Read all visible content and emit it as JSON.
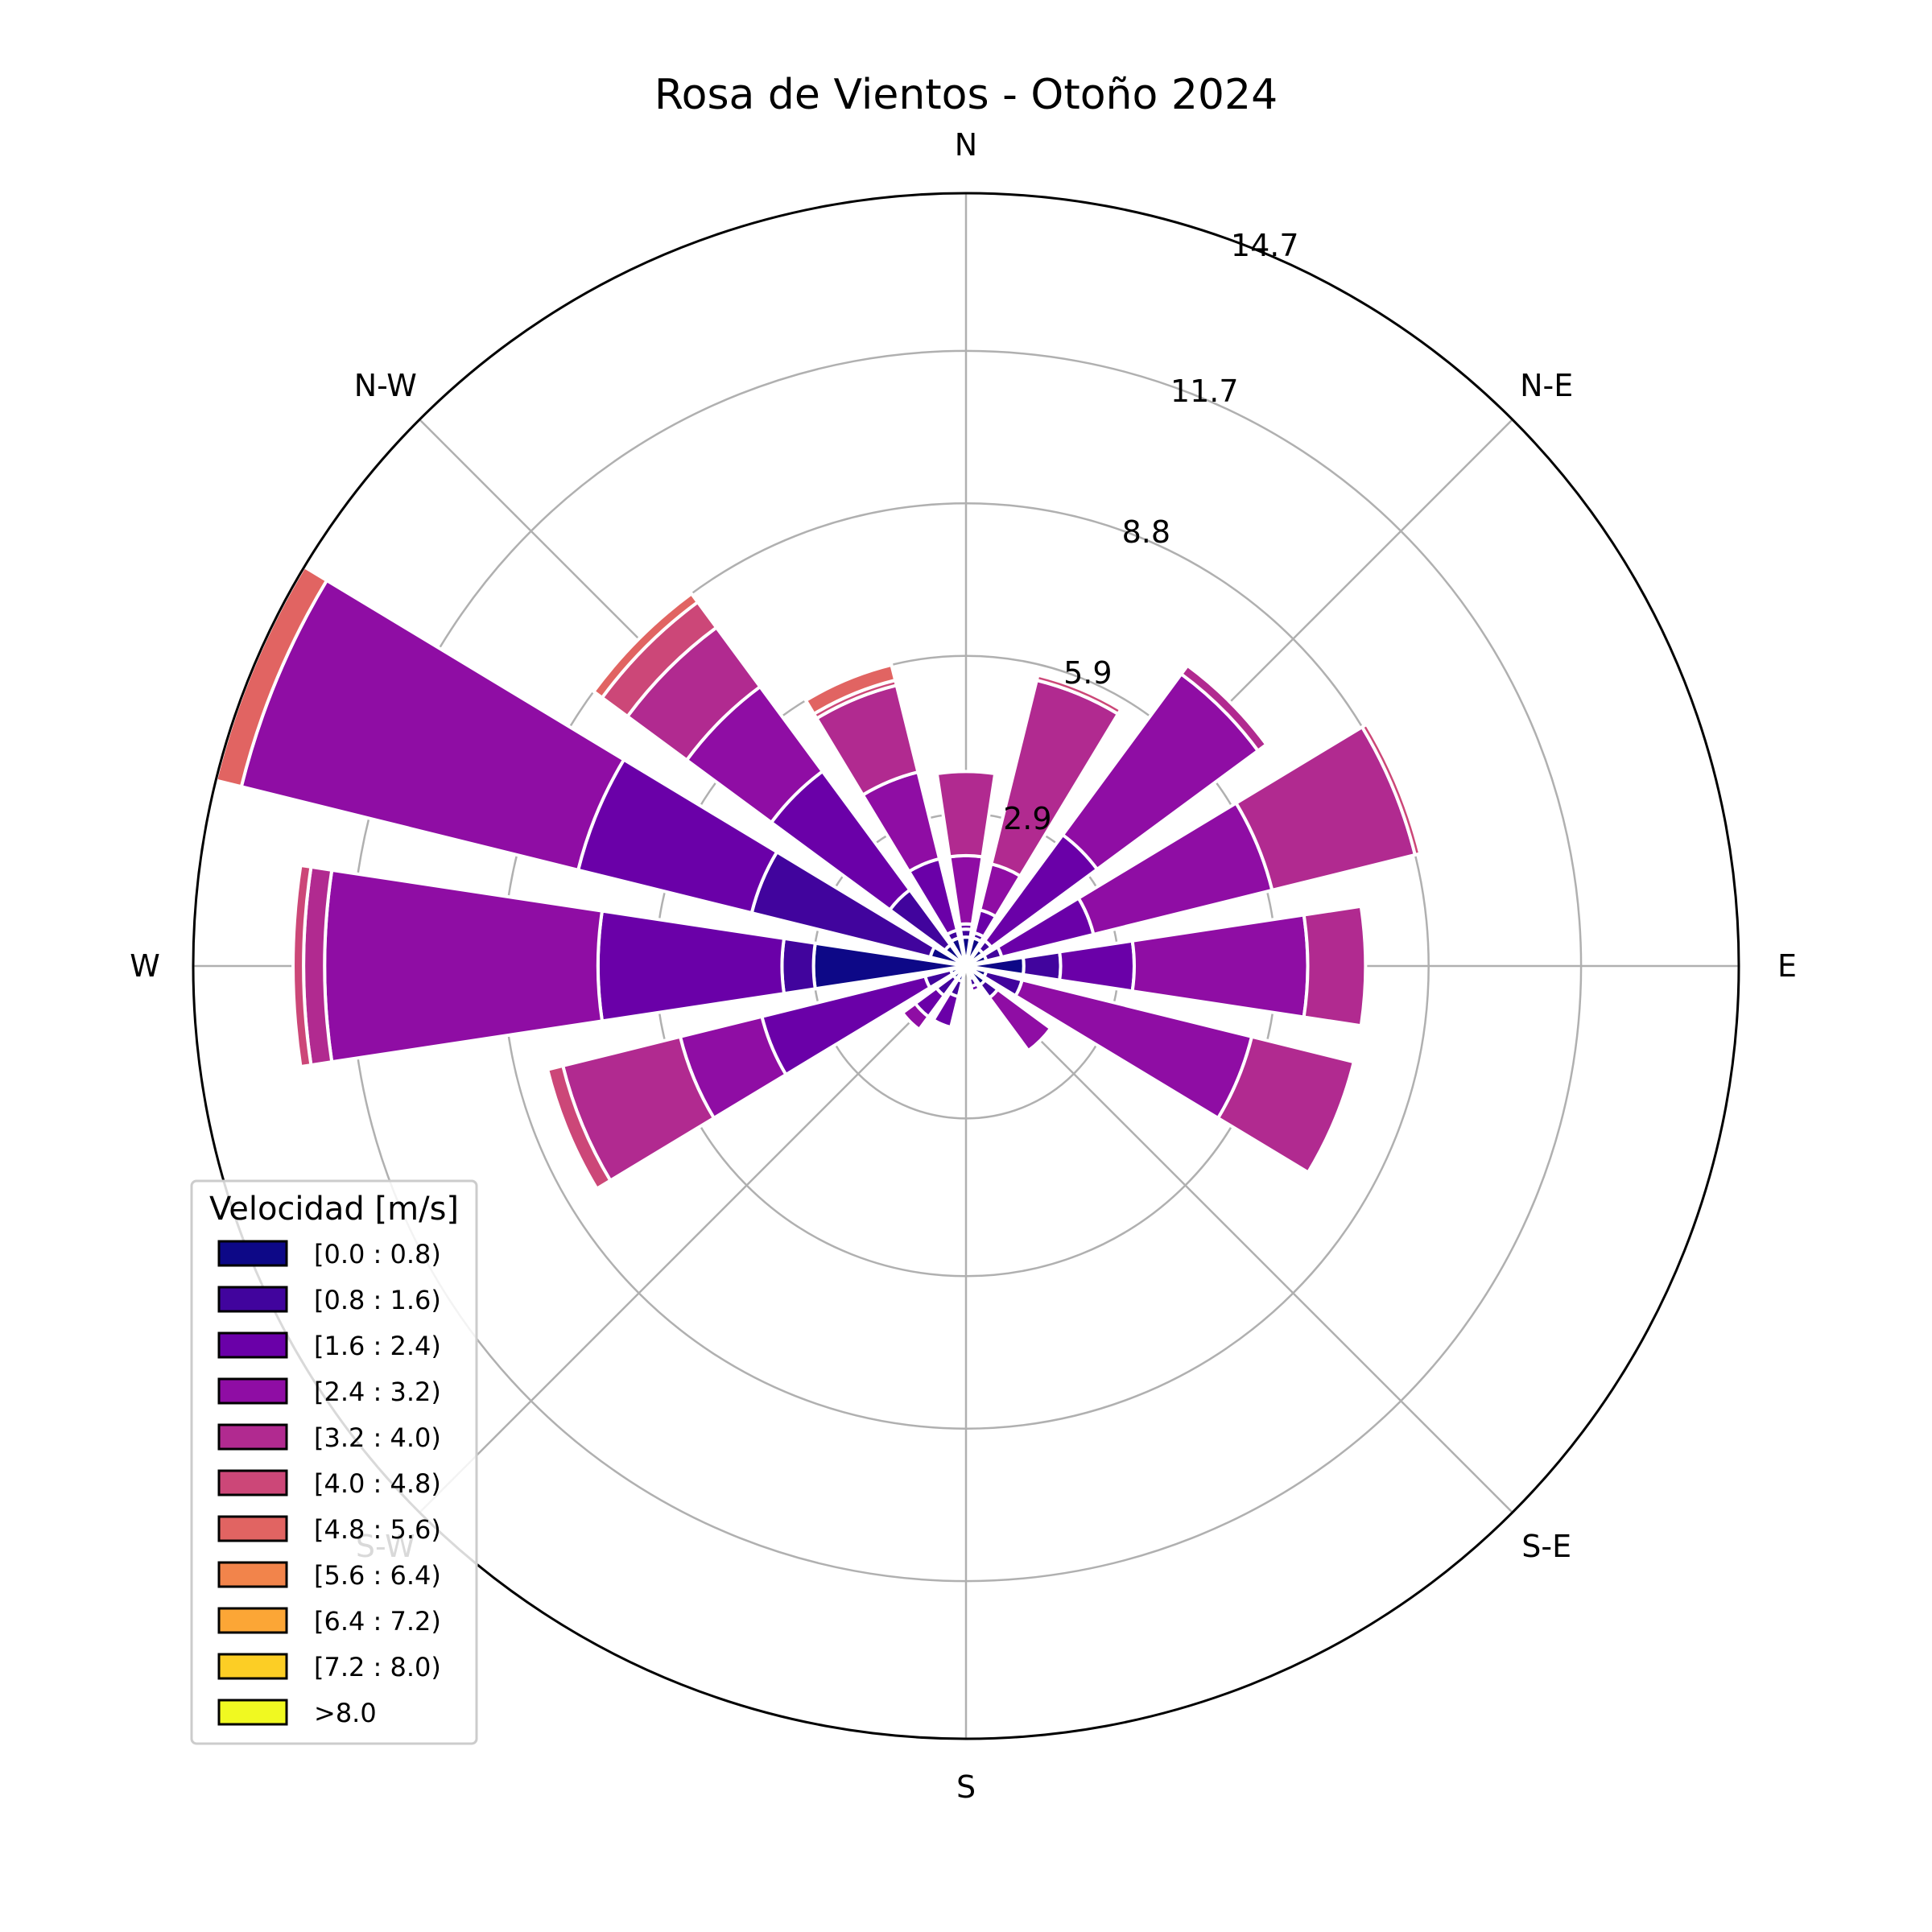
{
  "chart_data": {
    "type": "windrose",
    "title": "Rosa de Vientos - Otoño 2024",
    "direction_labels": [
      "E",
      "N-E",
      "N",
      "N-W",
      "W",
      "S-W",
      "S",
      "S-E"
    ],
    "radial_ticks": [
      2.9,
      5.9,
      8.8,
      11.7,
      14.7
    ],
    "radial_tick_labels": [
      "2.9",
      "5.9",
      "8.8",
      "11.7",
      "14.7"
    ],
    "rmax": 14.7,
    "grid": true,
    "legend": {
      "title": "Velocidad [m/s]",
      "placement": "lower-left",
      "bins": [
        {
          "label": "[0.0 : 0.8)",
          "color": "#0d0887"
        },
        {
          "label": "[0.8 : 1.6)",
          "color": "#41049d"
        },
        {
          "label": "[1.6 : 2.4)",
          "color": "#6a00a8"
        },
        {
          "label": "[2.4 : 3.2)",
          "color": "#8f0da4"
        },
        {
          "label": "[3.2 : 4.0)",
          "color": "#b12a90"
        },
        {
          "label": "[4.0 : 4.8)",
          "color": "#cc4778"
        },
        {
          "label": "[4.8 : 5.6)",
          "color": "#e16462"
        },
        {
          "label": "[5.6 : 6.4)",
          "color": "#f2844b"
        },
        {
          "label": "[6.4 : 7.2)",
          "color": "#fca636"
        },
        {
          "label": "[7.2 : 8.0)",
          "color": "#fcce25"
        },
        {
          "label": ">8.0",
          "color": "#f0f921"
        }
      ]
    },
    "sectors": [
      {
        "direction_deg": 0,
        "cumulative": [
          0.55,
          0.7,
          0.8,
          2.1,
          3.7,
          3.7,
          3.7
        ]
      },
      {
        "direction_deg": 22.5,
        "cumulative": [
          0.55,
          0.65,
          1.1,
          2.0,
          5.6,
          5.7,
          5.7
        ]
      },
      {
        "direction_deg": 45,
        "cumulative": [
          0.4,
          0.6,
          3.1,
          6.9,
          7.1,
          7.1,
          7.1
        ]
      },
      {
        "direction_deg": 67.5,
        "cumulative": [
          0.4,
          0.7,
          2.5,
          6.0,
          8.8,
          8.9,
          8.9
        ]
      },
      {
        "direction_deg": 90,
        "cumulative": [
          1.1,
          1.8,
          3.2,
          6.5,
          7.6,
          7.6,
          7.6
        ]
      },
      {
        "direction_deg": 112.5,
        "cumulative": [
          0.4,
          1.1,
          1.1,
          5.6,
          7.6,
          7.6,
          7.6
        ]
      },
      {
        "direction_deg": 135,
        "cumulative": [
          0.45,
          0.75,
          0.75,
          2.0,
          2.0,
          2.0,
          2.0
        ]
      },
      {
        "direction_deg": 157.5,
        "cumulative": [
          0.25,
          0.4,
          0.5,
          0.5,
          0.5,
          0.5,
          0.5
        ]
      },
      {
        "direction_deg": 180,
        "cumulative": [
          0,
          0,
          0,
          0,
          0,
          0,
          0
        ]
      },
      {
        "direction_deg": 202.5,
        "cumulative": [
          0.3,
          0.6,
          1.2,
          1.2,
          1.2,
          1.2,
          1.2
        ]
      },
      {
        "direction_deg": 225,
        "cumulative": [
          0.3,
          0.7,
          1.2,
          1.5,
          1.5,
          1.5,
          1.5
        ]
      },
      {
        "direction_deg": 247.5,
        "cumulative": [
          0.3,
          0.8,
          4.0,
          5.6,
          7.9,
          8.2,
          8.2
        ]
      },
      {
        "direction_deg": 270,
        "cumulative": [
          2.9,
          3.5,
          7.0,
          12.2,
          12.6,
          12.8,
          12.8
        ]
      },
      {
        "direction_deg": 292.5,
        "cumulative": [
          0.7,
          4.2,
          7.6,
          14.2,
          14.2,
          14.2,
          14.7
        ]
      },
      {
        "direction_deg": 315,
        "cumulative": [
          0.5,
          1.8,
          4.6,
          6.6,
          8.0,
          8.6,
          8.8
        ]
      },
      {
        "direction_deg": 337.5,
        "cumulative": [
          0.55,
          0.7,
          2.1,
          3.8,
          5.5,
          5.6,
          5.9
        ]
      }
    ]
  }
}
